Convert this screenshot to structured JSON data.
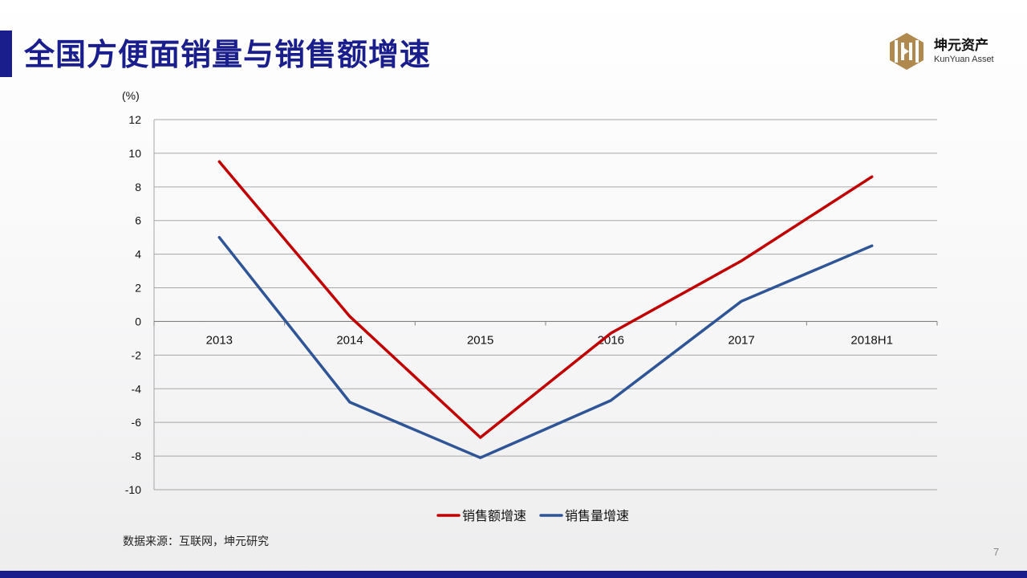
{
  "slide": {
    "title": "全国方便面销量与销售额增速",
    "source": "数据来源：互联网，坤元研究",
    "page_number": "7"
  },
  "logo": {
    "name": "坤元资产",
    "subtitle": "KunYuan Asset",
    "color": "#b0894f"
  },
  "colors": {
    "brand": "#1a1e8c",
    "series_revenue": "#c00000",
    "series_volume": "#2f5597",
    "grid": "#a6a6a6"
  },
  "chart_data": {
    "type": "line",
    "unit_label": "(%)",
    "categories": [
      "2013",
      "2014",
      "2015",
      "2016",
      "2017",
      "2018H1"
    ],
    "ylim": [
      -10,
      12
    ],
    "yticks": [
      12,
      10,
      8,
      6,
      4,
      2,
      0,
      -2,
      -4,
      -6,
      -8,
      -10
    ],
    "grid": true,
    "legend_position": "bottom",
    "series": [
      {
        "name": "销售额增速",
        "color": "#c00000",
        "values": [
          9.5,
          0.3,
          -6.9,
          -0.7,
          3.6,
          8.6
        ]
      },
      {
        "name": "销售量增速",
        "color": "#2f5597",
        "values": [
          5.0,
          -4.8,
          -8.1,
          -4.7,
          1.2,
          4.5
        ]
      }
    ]
  }
}
